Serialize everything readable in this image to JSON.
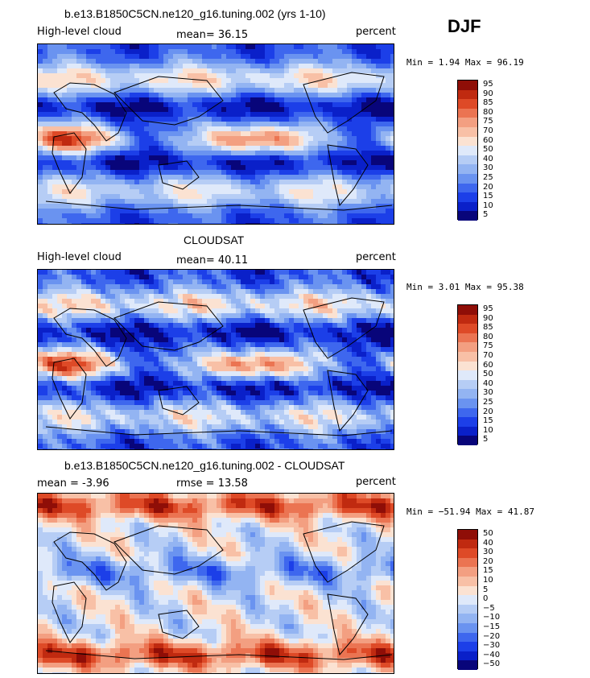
{
  "season": "DJF",
  "palette": [
    "#08057a",
    "#0a20c9",
    "#1c3fe8",
    "#3e67ee",
    "#6a93f0",
    "#93b4f2",
    "#b6cdf5",
    "#dfe9fa",
    "#fbe2d2",
    "#f8c0a6",
    "#f39f81",
    "#eb7452",
    "#de4a27",
    "#c02a10",
    "#8f0e07"
  ],
  "panels": [
    {
      "title": "b.e13.B1850C5CN.ne120_g16.tuning.002 (yrs 1-10)",
      "left_label": "High-level cloud",
      "center_label": "mean=  36.15",
      "right_label": "percent",
      "minmax": "Min =   1.94 Max =  96.19",
      "legend_labels": [
        "95",
        "90",
        "85",
        "80",
        "75",
        "70",
        "60",
        "50",
        "40",
        "30",
        "25",
        "20",
        "15",
        "10",
        "5"
      ]
    },
    {
      "title": "CLOUDSAT",
      "left_label": "High-level cloud",
      "center_label": "mean=  40.11",
      "right_label": "percent",
      "minmax": "Min =   3.01 Max =  95.38",
      "legend_labels": [
        "95",
        "90",
        "85",
        "80",
        "75",
        "70",
        "60",
        "50",
        "40",
        "30",
        "25",
        "20",
        "15",
        "10",
        "5"
      ]
    },
    {
      "title": "b.e13.B1850C5CN.ne120_g16.tuning.002 - CLOUDSAT",
      "left_label": "mean =  -3.96",
      "center_label": "rmse =  13.58",
      "right_label": "percent",
      "minmax": "Min = −51.94 Max =  41.87",
      "legend_labels": [
        "50",
        "40",
        "30",
        "20",
        "15",
        "10",
        "5",
        "0",
        "−5",
        "−10",
        "−15",
        "−20",
        "−30",
        "−40",
        "−50"
      ]
    }
  ]
}
